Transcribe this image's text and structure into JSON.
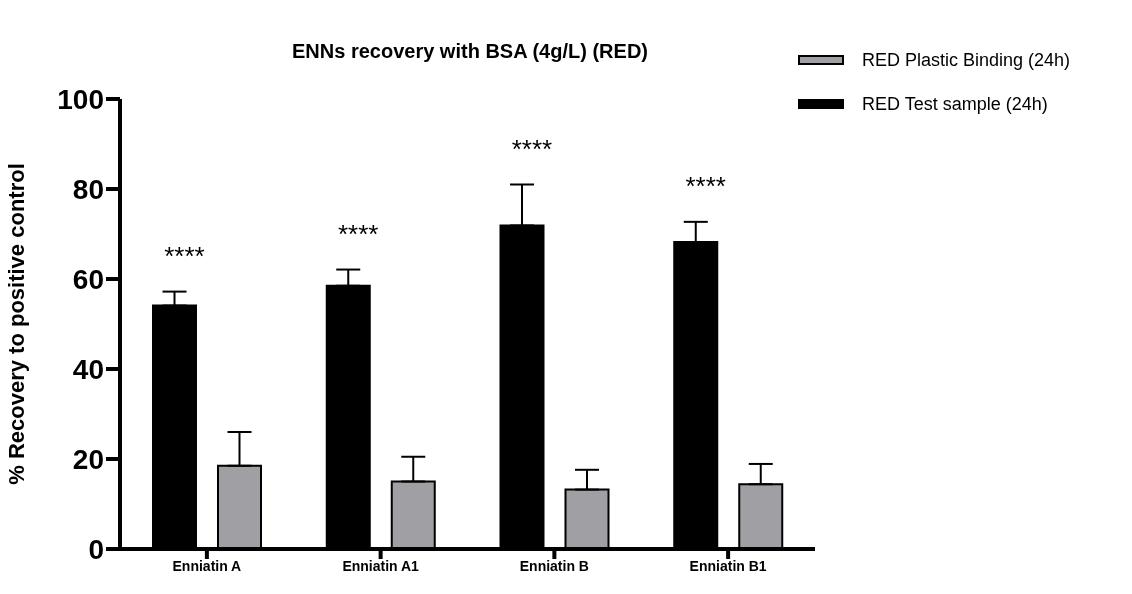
{
  "chart_data": {
    "type": "bar",
    "title": "ENNs recovery with BSA (4g/L) (RED)",
    "ylabel": "% Recovery to positive control",
    "categories": [
      "Enniatin A",
      "Enniatin A1",
      "Enniatin B",
      "Enniatin B1"
    ],
    "series": [
      {
        "name": "RED Test sample (24h)",
        "color": "#000000",
        "values": [
          54.1,
          58.5,
          71.9,
          68.2
        ],
        "errors": [
          [
            54.1,
            57.2
          ],
          [
            58.5,
            62.1
          ],
          [
            71.9,
            81.0
          ],
          [
            68.2,
            72.7
          ]
        ]
      },
      {
        "name": "RED Plastic Binding (24h)",
        "color": "#a0a0a4",
        "values": [
          18.5,
          15.0,
          13.2,
          14.4
        ],
        "errors": [
          [
            18.5,
            26.0
          ],
          [
            15.0,
            20.5
          ],
          [
            13.2,
            17.6
          ],
          [
            14.4,
            18.9
          ]
        ]
      }
    ],
    "ylim": [
      0,
      100
    ],
    "yticks": [
      0,
      20,
      40,
      60,
      80,
      100
    ],
    "grid": false,
    "legend": "top right",
    "annotations": [
      "****",
      "****",
      "****",
      "****"
    ]
  }
}
